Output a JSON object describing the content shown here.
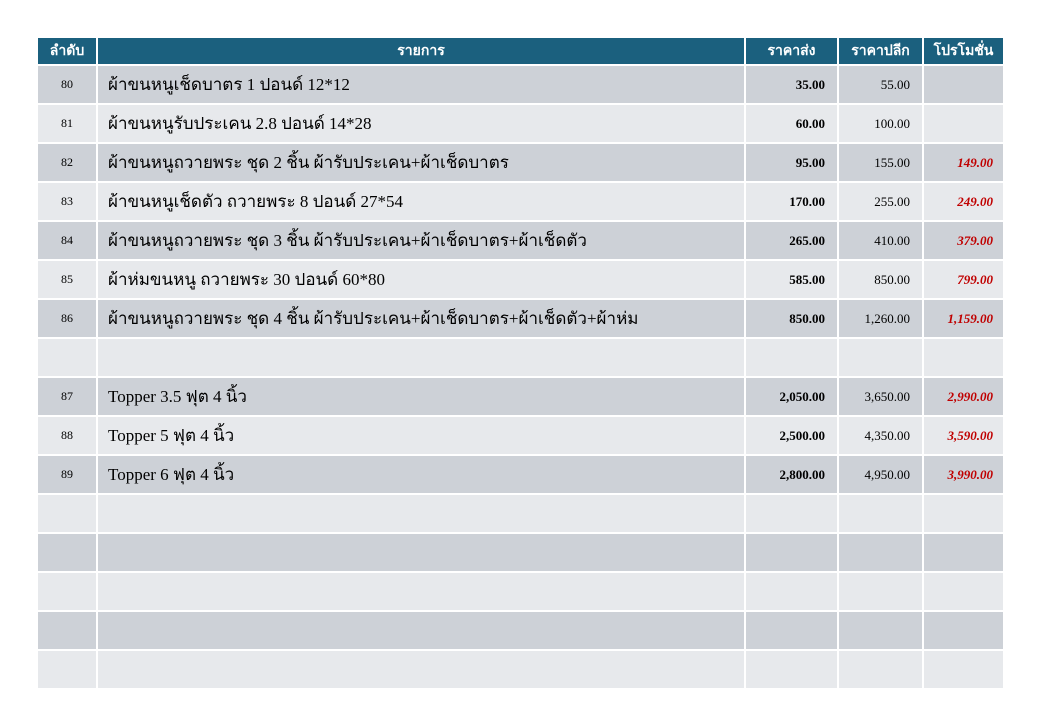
{
  "colors": {
    "header-bg": "#1B607E",
    "stripe-dark": "#CDD1D7",
    "stripe-light": "#E7E9EC",
    "promo-red": "#C00000"
  },
  "table": {
    "headers": [
      {
        "label": "ลำดับ"
      },
      {
        "label": "รายการ"
      },
      {
        "label": "ราคาส่ง"
      },
      {
        "label": "ราคาปลีก"
      },
      {
        "label": "โปรโมชั่น"
      }
    ],
    "rows": [
      {
        "no": "80",
        "item": "ผ้าขนหนูเช็ดบาตร 1 ปอนด์ 12*12",
        "wholesale": "35.00",
        "retail": "55.00",
        "promo": ""
      },
      {
        "no": "81",
        "item": "ผ้าขนหนูรับประเคน 2.8 ปอนด์ 14*28",
        "wholesale": "60.00",
        "retail": "100.00",
        "promo": ""
      },
      {
        "no": "82",
        "item": "ผ้าขนหนูถวายพระ ชุด 2 ชิ้น ผ้ารับประเคน+ผ้าเช็ดบาตร",
        "wholesale": "95.00",
        "retail": "155.00",
        "promo": "149.00"
      },
      {
        "no": "83",
        "item": "ผ้าขนหนูเช็ดตัว ถวายพระ 8 ปอนด์ 27*54",
        "wholesale": "170.00",
        "retail": "255.00",
        "promo": "249.00"
      },
      {
        "no": "84",
        "item": "ผ้าขนหนูถวายพระ ชุด 3 ชิ้น ผ้ารับประเคน+ผ้าเช็ดบาตร+ผ้าเช็ดตัว",
        "wholesale": "265.00",
        "retail": "410.00",
        "promo": "379.00"
      },
      {
        "no": "85",
        "item": "ผ้าห่มขนหนู ถวายพระ 30 ปอนด์ 60*80",
        "wholesale": "585.00",
        "retail": "850.00",
        "promo": "799.00"
      },
      {
        "no": "86",
        "item": "ผ้าขนหนูถวายพระ ชุด 4 ชิ้น ผ้ารับประเคน+ผ้าเช็ดบาตร+ผ้าเช็ดตัว+ผ้าห่ม",
        "wholesale": "850.00",
        "retail": "1,260.00",
        "promo": "1,159.00"
      },
      {
        "no": "",
        "item": "",
        "wholesale": "",
        "retail": "",
        "promo": ""
      },
      {
        "no": "87",
        "item": "Topper 3.5 ฟุต 4 นิ้ว",
        "wholesale": "2,050.00",
        "retail": "3,650.00",
        "promo": "2,990.00"
      },
      {
        "no": "88",
        "item": "Topper 5 ฟุต 4 นิ้ว",
        "wholesale": "2,500.00",
        "retail": "4,350.00",
        "promo": "3,590.00"
      },
      {
        "no": "89",
        "item": "Topper 6 ฟุต 4 นิ้ว",
        "wholesale": "2,800.00",
        "retail": "4,950.00",
        "promo": "3,990.00"
      },
      {
        "no": "",
        "item": "",
        "wholesale": "",
        "retail": "",
        "promo": ""
      },
      {
        "no": "",
        "item": "",
        "wholesale": "",
        "retail": "",
        "promo": ""
      },
      {
        "no": "",
        "item": "",
        "wholesale": "",
        "retail": "",
        "promo": ""
      },
      {
        "no": "",
        "item": "",
        "wholesale": "",
        "retail": "",
        "promo": ""
      },
      {
        "no": "",
        "item": "",
        "wholesale": "",
        "retail": "",
        "promo": ""
      }
    ]
  }
}
